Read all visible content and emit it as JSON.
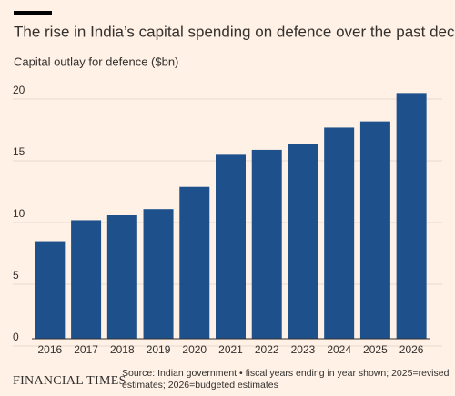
{
  "chart_data": {
    "type": "bar",
    "title": "The rise in India’s capital spending on defence over the past decade",
    "subtitle": "Capital outlay for defence ($bn)",
    "categories": [
      "2016",
      "2017",
      "2018",
      "2019",
      "2020",
      "2021",
      "2022",
      "2023",
      "2024",
      "2025",
      "2026"
    ],
    "values": [
      7.9,
      9.6,
      10.0,
      10.5,
      12.3,
      14.9,
      15.3,
      15.8,
      17.1,
      17.6,
      19.9
    ],
    "color": "#1e518c",
    "ylim": [
      0,
      20
    ],
    "yticks": [
      0,
      5,
      10,
      15,
      20
    ],
    "grid": true,
    "source": "Source: Indian government • fiscal years ending in year shown; 2025=revised estimates; 2026=budgeted estimates",
    "brand": "FINANCIAL TIMES"
  }
}
